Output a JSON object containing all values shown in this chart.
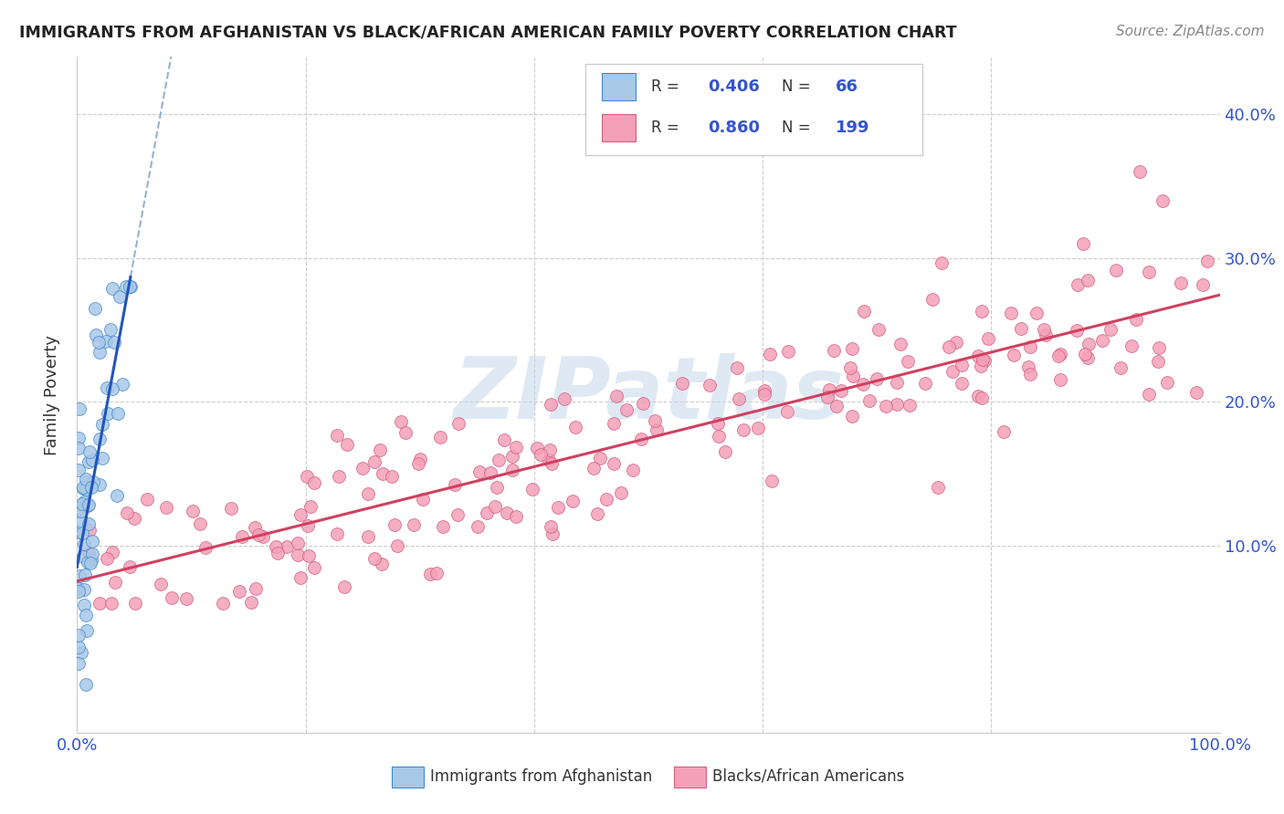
{
  "title": "IMMIGRANTS FROM AFGHANISTAN VS BLACK/AFRICAN AMERICAN FAMILY POVERTY CORRELATION CHART",
  "source": "Source: ZipAtlas.com",
  "ylabel": "Family Poverty",
  "legend_label1": "Immigrants from Afghanistan",
  "legend_label2": "Blacks/African Americans",
  "R1": 0.406,
  "N1": 66,
  "R2": 0.86,
  "N2": 199,
  "color_blue_fill": "#a8c8e8",
  "color_blue_edge": "#4488cc",
  "color_blue_line": "#2255bb",
  "color_pink_fill": "#f4a0b8",
  "color_pink_edge": "#d06080",
  "color_pink_line": "#d04060",
  "color_dashed": "#88aad0",
  "watermark": "ZIPatlas",
  "xlim": [
    0.0,
    1.0
  ],
  "ylim": [
    -0.03,
    0.44
  ],
  "yticks": [
    0.0,
    0.1,
    0.2,
    0.3,
    0.4
  ],
  "ytick_labels_right": [
    "",
    "10.0%",
    "20.0%",
    "30.0%",
    "40.0%"
  ],
  "xticks": [
    0.0,
    0.2,
    0.4,
    0.6,
    0.8,
    1.0
  ],
  "xtick_labels": [
    "0.0%",
    "",
    "",
    "",
    "",
    "100.0%"
  ],
  "tick_color": "#3355cc",
  "background_color": "#ffffff",
  "grid_color": "#cccccc",
  "seed": 12345
}
